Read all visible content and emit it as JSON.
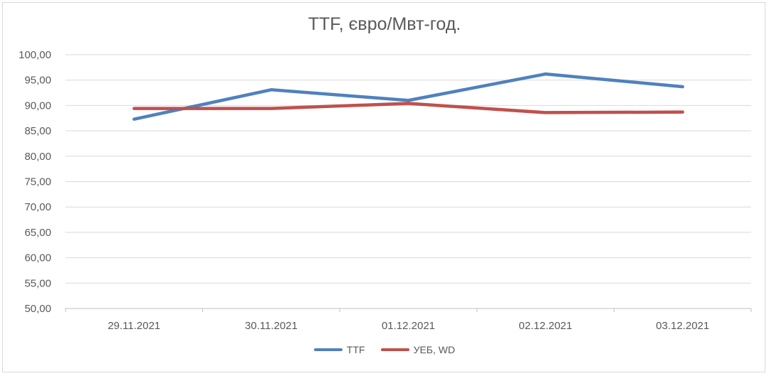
{
  "chart_data": {
    "type": "line",
    "title": "TTF, євро/Мвт-год.",
    "xlabel": "",
    "ylabel": "",
    "categories": [
      "29.11.2021",
      "30.11.2021",
      "01.12.2021",
      "02.12.2021",
      "03.12.2021"
    ],
    "y_ticks": [
      "50,00",
      "55,00",
      "60,00",
      "65,00",
      "70,00",
      "75,00",
      "80,00",
      "85,00",
      "90,00",
      "95,00",
      "100,00"
    ],
    "ylim": [
      50,
      100
    ],
    "grid": true,
    "legend_position": "bottom",
    "series": [
      {
        "name": "TTF",
        "color": "#4f81bd",
        "values": [
          87.3,
          93.1,
          91.0,
          96.2,
          93.7
        ]
      },
      {
        "name": "УЕБ, WD",
        "color": "#c0504d",
        "values": [
          89.4,
          89.4,
          90.4,
          88.6,
          88.7
        ]
      }
    ]
  }
}
